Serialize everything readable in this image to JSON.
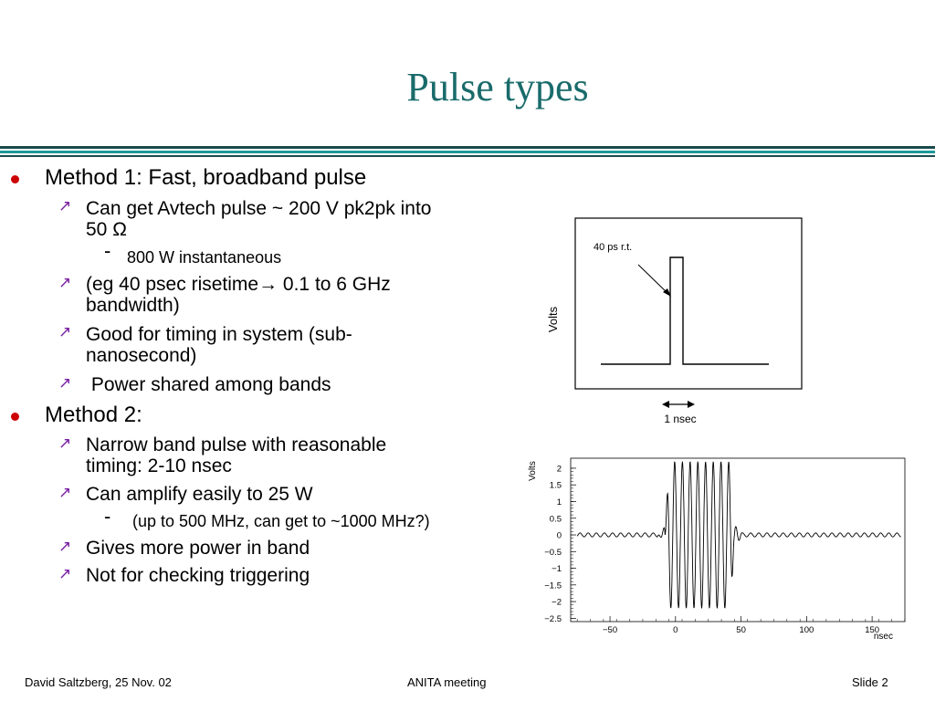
{
  "slide": {
    "title": "Pulse types"
  },
  "bullets": {
    "m1": {
      "label": "Method 1: Fast, broadband pulse",
      "sub1": "Can get Avtech pulse ~ 200 V pk2pk into",
      "sub1_cont": "50 Ω",
      "sub1_detail": "800 W instantaneous",
      "sub2": "(eg 40 psec risetime→ 0.1 to 6 GHz",
      "sub2_cont": "bandwidth)",
      "sub3": "Good for timing in system (sub-",
      "sub3_cont": "nanosecond)",
      "sub4": " Power shared among bands"
    },
    "m2": {
      "label": "Method 2:",
      "sub1": "Narrow band pulse with reasonable",
      "sub1_cont": "timing: 2-10 nsec",
      "sub2": "Can amplify easily to 25 W",
      "sub2_detail": "(up to 500 MHz, can get to ~1000 MHz?)",
      "sub3": "Gives more power in band",
      "sub4": "Not for checking triggering"
    },
    "marks": {
      "level1": "•",
      "level2": "↗",
      "level3": "-"
    }
  },
  "figure_top": {
    "ylabel": "Volts",
    "annotation": "40 ps r.t.",
    "scale_label": "1 nsec"
  },
  "chart_data": {
    "type": "line",
    "title": "",
    "xlabel": "nsec",
    "ylabel": "Volts",
    "xlim": [
      -80,
      175
    ],
    "ylim": [
      -2.6,
      2.3
    ],
    "xticks": [
      -50,
      0,
      50,
      100,
      150
    ],
    "xtick_labels": [
      "−50",
      "0",
      "50",
      "100",
      "150"
    ],
    "yticks": [
      2,
      1.5,
      1,
      0.5,
      0,
      -0.5,
      -1,
      -1.5,
      -2,
      -2.5
    ],
    "ytick_labels": [
      "2",
      "1.5",
      "1",
      "0.5",
      "0",
      "−0.5",
      "−1",
      "−1.5",
      "−2",
      "−2.5"
    ],
    "series": [
      {
        "name": "",
        "burst_start": -8,
        "burst_end": 45,
        "burst_amplitude": 2.2,
        "baseline_amplitude": 0.06,
        "cycles_in_burst": 9,
        "color": "#000000"
      }
    ]
  },
  "footer": {
    "left": "David Saltzberg, 25 Nov. 02",
    "center": "ANITA meeting",
    "right": "Slide 2"
  },
  "colors": {
    "title": "#1a6b6b",
    "bullet": "#cc0000",
    "subarrow": "#7a1fa2",
    "rule_teal": "#1d9a9a",
    "rule_dark": "#1a4a4a"
  }
}
